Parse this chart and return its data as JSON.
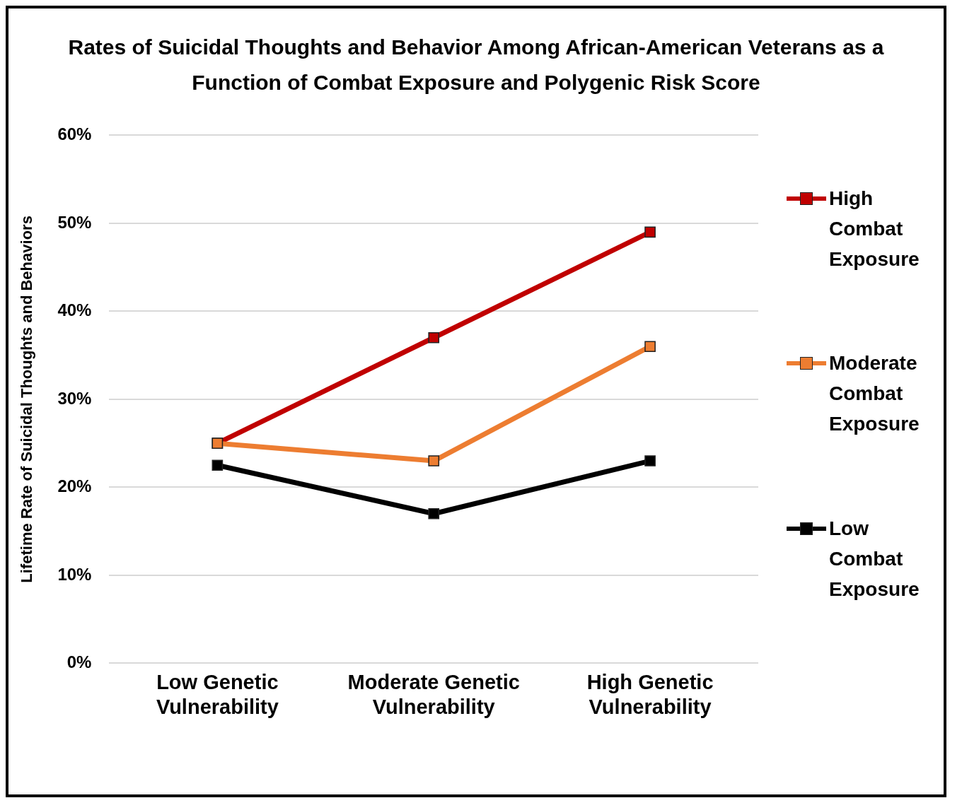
{
  "chart_data": {
    "type": "line",
    "title": "Rates of Suicidal Thoughts and Behavior Among African-American Veterans as a Function of Combat Exposure and Polygenic Risk Score",
    "ylabel": "Lifetime Rate of Suicidal Thoughts and Behaviors",
    "categories": [
      "Low Genetic Vulnerability",
      "Moderate Genetic Vulnerability",
      "High Genetic Vulnerability"
    ],
    "series": [
      {
        "name": "High Combat Exposure",
        "color": "#c00000",
        "values": [
          25,
          37,
          49
        ]
      },
      {
        "name": "Moderate Combat Exposure",
        "color": "#ed7d31",
        "values": [
          25,
          23,
          36
        ]
      },
      {
        "name": "Low Combat Exposure",
        "color": "#000000",
        "values": [
          22.5,
          17,
          23
        ]
      }
    ],
    "ylim": [
      0,
      60
    ],
    "yticks": [
      {
        "value": 0,
        "label": "0%"
      },
      {
        "value": 10,
        "label": "10%"
      },
      {
        "value": 20,
        "label": "20%"
      },
      {
        "value": 30,
        "label": "30%"
      },
      {
        "value": 40,
        "label": "40%"
      },
      {
        "value": 50,
        "label": "50%"
      },
      {
        "value": 60,
        "label": "60%"
      }
    ],
    "grid": "y",
    "legend": "right",
    "marker": "square",
    "line_style": "solid"
  }
}
